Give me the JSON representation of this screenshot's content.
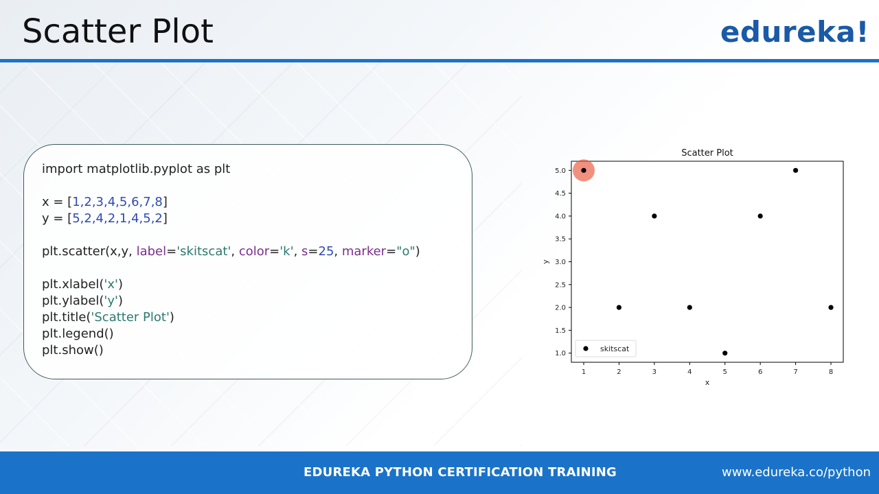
{
  "slide": {
    "title": "Scatter Plot",
    "logo": "edureka!"
  },
  "code": {
    "line1": "import matplotlib.pyplot as plt",
    "x_prefix": "x = [",
    "x_values": "1,2,3,4,5,6,7,8",
    "y_prefix": "y = [",
    "y_values": "5,2,4,2,1,4,5,2",
    "close_bracket": "]",
    "scatter_prefix": "plt.scatter(x,y, ",
    "kw_label": "label",
    "str_label": "'skitscat'",
    "kw_color": "color",
    "str_color": "'k'",
    "kw_s": "s",
    "num_s": "25",
    "kw_marker": "marker",
    "str_marker": "\"o\"",
    "xlabel_prefix": "plt.xlabel(",
    "xlabel_arg": "'x'",
    "ylabel_prefix": "plt.ylabel(",
    "ylabel_arg": "'y'",
    "title_prefix": "plt.title(",
    "title_arg": "'Scatter Plot'",
    "legend_line": "plt.legend()",
    "show_line": "plt.show()"
  },
  "chart_data": {
    "type": "scatter",
    "title": "Scatter Plot",
    "xlabel": "x",
    "ylabel": "y",
    "x": [
      1,
      2,
      3,
      4,
      5,
      6,
      7,
      8
    ],
    "series": [
      {
        "name": "skitscat",
        "x": [
          1,
          2,
          3,
          4,
          5,
          6,
          7,
          8
        ],
        "y": [
          5,
          2,
          4,
          2,
          1,
          4,
          5,
          2
        ],
        "color": "#000000"
      }
    ],
    "xlim": [
      0.65,
      8.35
    ],
    "ylim": [
      0.8,
      5.2
    ],
    "xticks": [
      "1",
      "2",
      "3",
      "4",
      "5",
      "6",
      "7",
      "8"
    ],
    "yticks": [
      "1.0",
      "1.5",
      "2.0",
      "2.5",
      "3.0",
      "3.5",
      "4.0",
      "4.5",
      "5.0"
    ],
    "legend_position": "lower-left",
    "grid": false
  },
  "footer": {
    "title": "EDUREKA PYTHON CERTIFICATION TRAINING",
    "url": "www.edureka.co/python"
  },
  "colors": {
    "accent": "#1a73c9",
    "logo": "#1a5aa6",
    "cursor_highlight": "#e8553a"
  }
}
